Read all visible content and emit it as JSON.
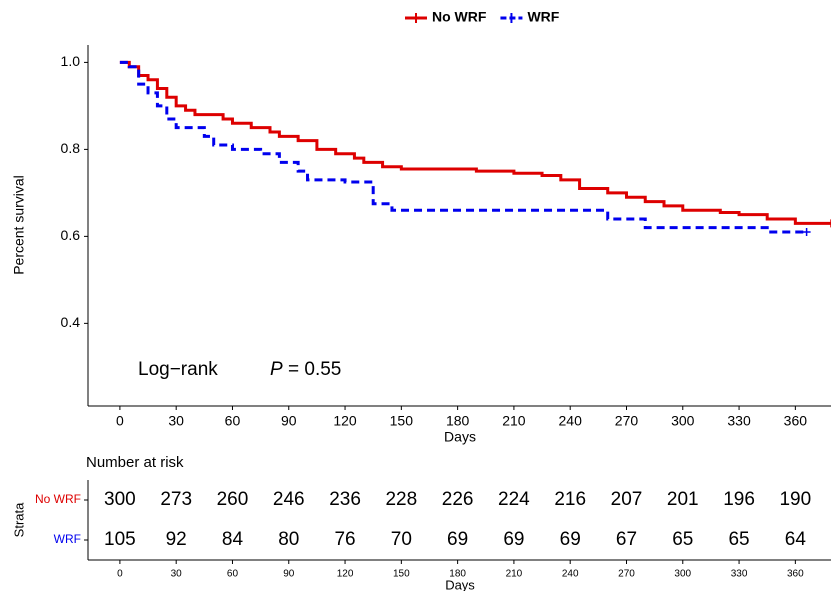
{
  "chart_data": {
    "type": "step",
    "xlabel": "Days",
    "ylabel": "Percent survival",
    "xlim": [
      -17,
      379
    ],
    "ylim": [
      0.21,
      1.04
    ],
    "xticks": [
      0,
      30,
      60,
      90,
      120,
      150,
      180,
      210,
      240,
      270,
      300,
      330,
      360
    ],
    "yticks": [
      {
        "value": 0.4,
        "label": "0.4"
      },
      {
        "value": 0.6,
        "label": "0.6"
      },
      {
        "value": 0.8,
        "label": "0.8"
      },
      {
        "value": 1.0,
        "label": "1.0"
      }
    ],
    "grid": false,
    "legend": "top",
    "annotation": {
      "test": "Log−rank",
      "p_symbol": "P",
      "p_text": "= 0.55"
    },
    "series": [
      {
        "name": "No WRF",
        "color": "#dd0000",
        "dashed": false,
        "x": [
          0,
          5,
          10,
          15,
          20,
          25,
          30,
          35,
          40,
          55,
          60,
          70,
          80,
          85,
          95,
          105,
          115,
          125,
          130,
          140,
          150,
          190,
          210,
          225,
          235,
          245,
          260,
          270,
          280,
          290,
          300,
          320,
          330,
          345,
          360,
          379
        ],
        "values": [
          1.0,
          0.99,
          0.97,
          0.96,
          0.94,
          0.92,
          0.9,
          0.89,
          0.88,
          0.87,
          0.86,
          0.85,
          0.84,
          0.83,
          0.82,
          0.8,
          0.79,
          0.78,
          0.77,
          0.76,
          0.755,
          0.75,
          0.745,
          0.74,
          0.73,
          0.71,
          0.7,
          0.69,
          0.68,
          0.67,
          0.66,
          0.655,
          0.65,
          0.64,
          0.63,
          0.63
        ]
      },
      {
        "name": "WRF",
        "color": "#0000ee",
        "dashed": true,
        "x": [
          0,
          5,
          10,
          15,
          20,
          25,
          30,
          45,
          50,
          60,
          75,
          85,
          95,
          100,
          120,
          135,
          145,
          260,
          280,
          345,
          366
        ],
        "values": [
          1.0,
          0.99,
          0.95,
          0.93,
          0.9,
          0.87,
          0.85,
          0.83,
          0.81,
          0.8,
          0.79,
          0.77,
          0.75,
          0.73,
          0.725,
          0.675,
          0.66,
          0.64,
          0.62,
          0.61,
          0.61
        ]
      }
    ],
    "risk_table": {
      "title": "Number at risk",
      "ylabel": "Strata",
      "xlabel": "Days",
      "times": [
        0,
        30,
        60,
        90,
        120,
        150,
        180,
        210,
        240,
        270,
        300,
        330,
        360
      ],
      "rows": [
        {
          "name": "No WRF",
          "color": "#dd0000",
          "values": [
            300,
            273,
            260,
            246,
            236,
            228,
            226,
            224,
            216,
            207,
            201,
            196,
            190
          ]
        },
        {
          "name": "WRF",
          "color": "#0000ee",
          "values": [
            105,
            92,
            84,
            80,
            76,
            70,
            69,
            69,
            69,
            67,
            65,
            65,
            64
          ]
        }
      ]
    }
  }
}
